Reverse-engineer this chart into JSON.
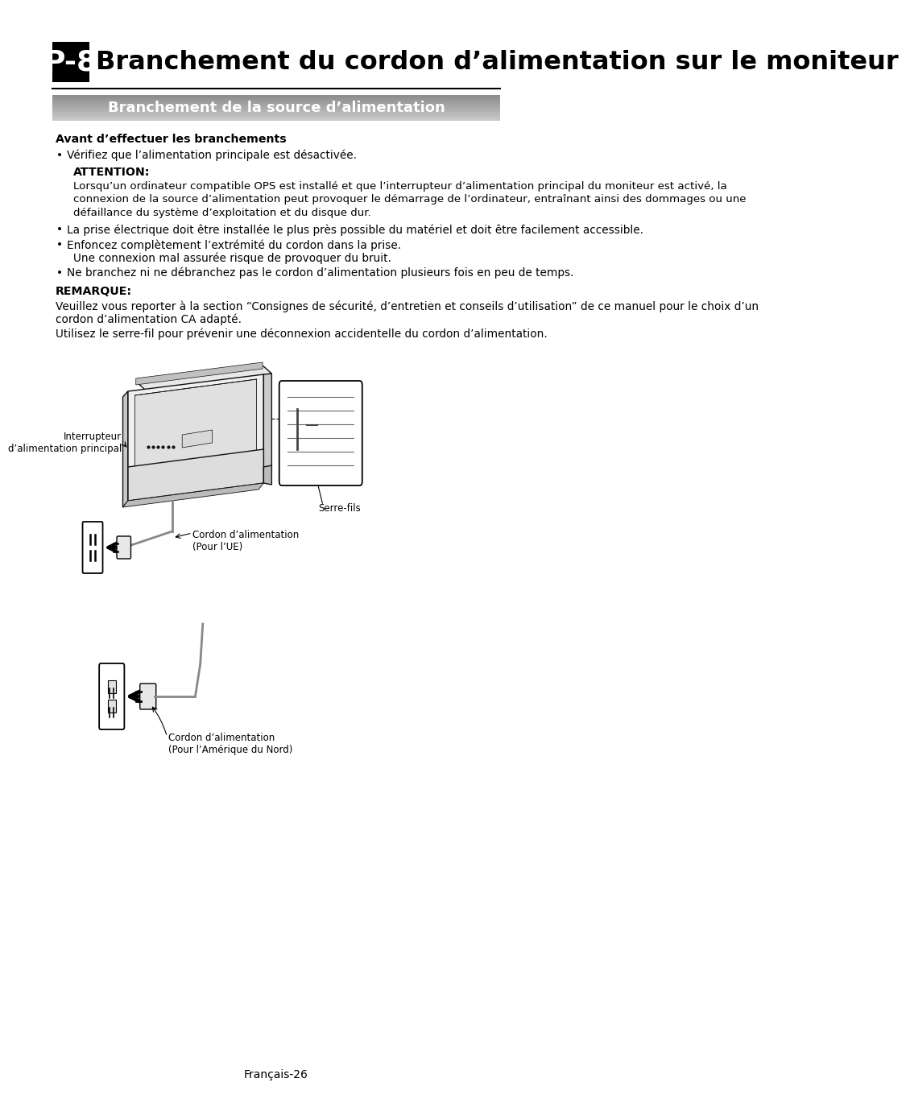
{
  "page_title_prefix": "P-8",
  "page_title": "Branchement du cordon d’alimentation sur le moniteur",
  "section_title": "Branchement de la source d’alimentation",
  "bold_heading1": "Avant d’effectuer les branchements",
  "bullet1": "Vérifiez que l’alimentation principale est désactivée.",
  "attention_label": "ATTENTION:",
  "attention_lines": [
    "Lorsqu’un ordinateur compatible OPS est installé et que l’interrupteur d’alimentation principal du moniteur est activé, la",
    "connexion de la source d’alimentation peut provoquer le démarrage de l’ordinateur, entraînant ainsi des dommages ou une",
    "défaillance du système d’exploitation et du disque dur."
  ],
  "bullet2": "La prise électrique doit être installée le plus près possible du matériel et doit être facilement accessible.",
  "bullet3a": "Enfoncez complètement l’extrémité du cordon dans la prise.",
  "bullet3b": "Une connexion mal assurée risque de provoquer du bruit.",
  "bullet4": "Ne branchez ni ne débranchez pas le cordon d’alimentation plusieurs fois en peu de temps.",
  "remarque_label": "REMARQUE:",
  "remarque_lines1": [
    "Veuillez vous reporter à la section “Consignes de sécurité, d’entretien et conseils d’utilisation” de ce manuel pour le choix d’un",
    "cordon d’alimentation CA adapté."
  ],
  "remarque_line2": "Utilisez le serre-fil pour prévenir une déconnexion accidentelle du cordon d’alimentation.",
  "label_interrupteur_line1": "Interrupteur",
  "label_interrupteur_line2": "d’alimentation principal",
  "label_cordon_ue_line1": "Cordon d’alimentation",
  "label_cordon_ue_line2": "(Pour l’UE)",
  "label_serre_fils": "Serre-fils",
  "label_cordon_nord_line1": "Cordon d’alimentation",
  "label_cordon_nord_line2": "(Pour l’Amérique du Nord)",
  "footer_text": "Français-26",
  "bg_color": "#ffffff"
}
